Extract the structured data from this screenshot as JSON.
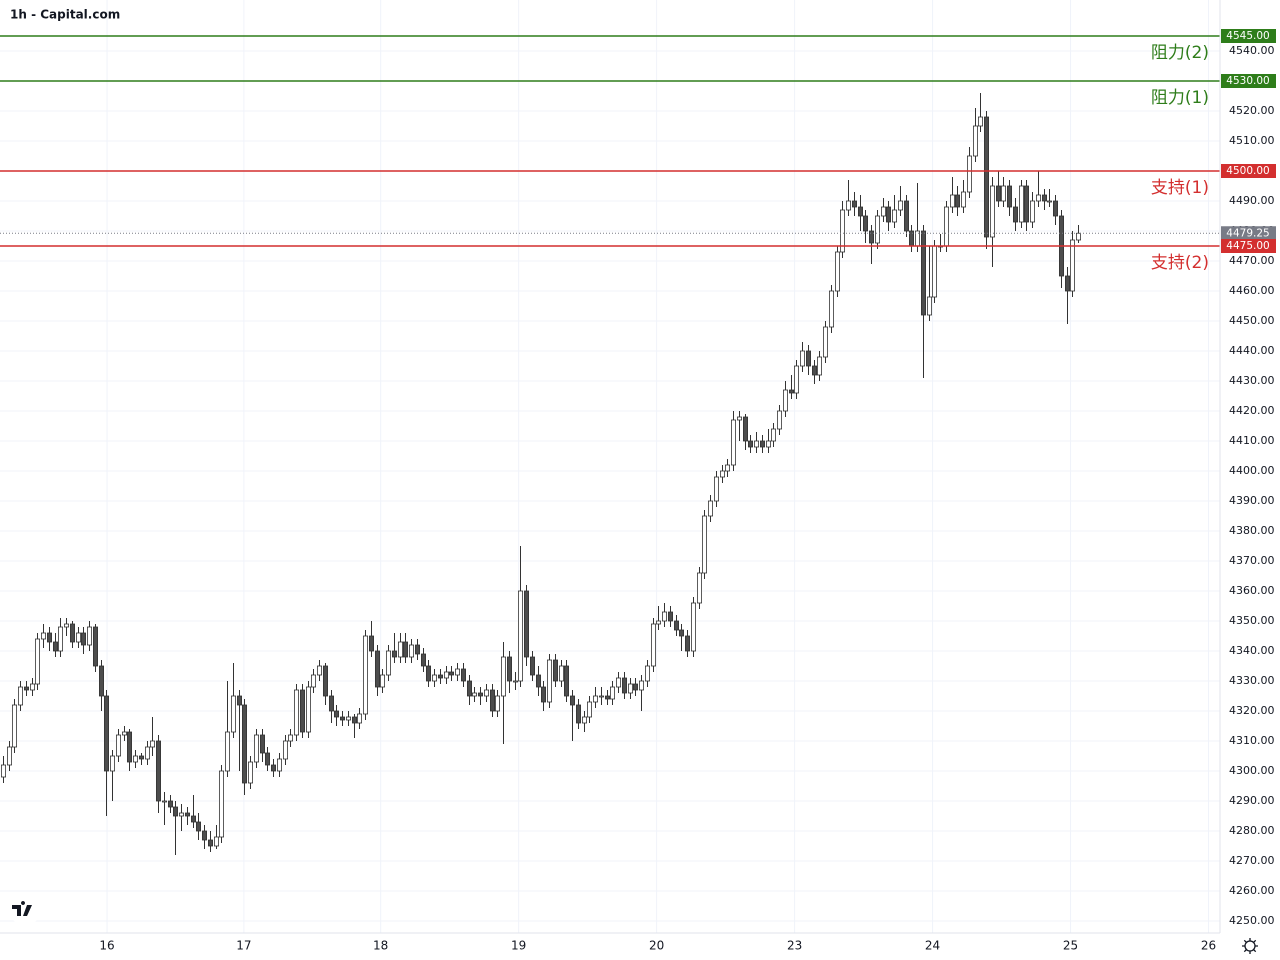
{
  "chart_data": {
    "type": "candlestick",
    "title": "1h - Capital.com",
    "candles": [
      [
        4298,
        4305,
        4296,
        4302
      ],
      [
        4302,
        4310,
        4300,
        4308
      ],
      [
        4308,
        4324,
        4306,
        4322
      ],
      [
        4322,
        4330,
        4320,
        4328
      ],
      [
        4328,
        4330,
        4325,
        4327
      ],
      [
        4327,
        4331,
        4325,
        4329
      ],
      [
        4329,
        4346,
        4327,
        4344
      ],
      [
        4344,
        4349,
        4341,
        4346
      ],
      [
        4346,
        4348,
        4340,
        4343
      ],
      [
        4343,
        4346,
        4338,
        4340
      ],
      [
        4340,
        4351,
        4338,
        4348
      ],
      [
        4348,
        4351,
        4345,
        4349
      ],
      [
        4349,
        4350,
        4341,
        4343
      ],
      [
        4343,
        4348,
        4341,
        4346
      ],
      [
        4346,
        4348,
        4339,
        4342
      ],
      [
        4342,
        4350,
        4340,
        4348
      ],
      [
        4348,
        4349,
        4333,
        4335
      ],
      [
        4335,
        4337,
        4320,
        4325
      ],
      [
        4325,
        4327,
        4285,
        4300
      ],
      [
        4300,
        4307,
        4290,
        4305
      ],
      [
        4305,
        4314,
        4303,
        4312
      ],
      [
        4312,
        4315,
        4310,
        4313
      ],
      [
        4313,
        4314,
        4300,
        4303
      ],
      [
        4303,
        4307,
        4301,
        4305
      ],
      [
        4305,
        4306,
        4302,
        4304
      ],
      [
        4304,
        4310,
        4302,
        4308
      ],
      [
        4308,
        4318,
        4305,
        4310
      ],
      [
        4310,
        4312,
        4286,
        4290
      ],
      [
        4290,
        4293,
        4282,
        4290
      ],
      [
        4290,
        4292,
        4286,
        4288
      ],
      [
        4288,
        4290,
        4272,
        4285
      ],
      [
        4285,
        4289,
        4280,
        4286
      ],
      [
        4286,
        4288,
        4282,
        4285
      ],
      [
        4285,
        4292,
        4281,
        4283
      ],
      [
        4283,
        4286,
        4277,
        4280
      ],
      [
        4280,
        4282,
        4274,
        4277
      ],
      [
        4277,
        4280,
        4273,
        4275
      ],
      [
        4275,
        4282,
        4274,
        4278
      ],
      [
        4278,
        4302,
        4276,
        4300
      ],
      [
        4300,
        4330,
        4298,
        4313
      ],
      [
        4313,
        4336,
        4311,
        4325
      ],
      [
        4325,
        4327,
        4300,
        4322
      ],
      [
        4322,
        4324,
        4292,
        4296
      ],
      [
        4296,
        4305,
        4294,
        4303
      ],
      [
        4303,
        4314,
        4301,
        4312
      ],
      [
        4312,
        4314,
        4303,
        4306
      ],
      [
        4306,
        4308,
        4300,
        4302
      ],
      [
        4302,
        4304,
        4298,
        4300
      ],
      [
        4300,
        4306,
        4298,
        4304
      ],
      [
        4304,
        4312,
        4302,
        4310
      ],
      [
        4310,
        4314,
        4308,
        4312
      ],
      [
        4312,
        4329,
        4310,
        4327
      ],
      [
        4327,
        4329,
        4311,
        4313
      ],
      [
        4313,
        4330,
        4311,
        4328
      ],
      [
        4328,
        4334,
        4326,
        4332
      ],
      [
        4332,
        4337,
        4330,
        4335
      ],
      [
        4335,
        4336,
        4322,
        4325
      ],
      [
        4325,
        4327,
        4316,
        4320
      ],
      [
        4320,
        4322,
        4315,
        4318
      ],
      [
        4318,
        4320,
        4315,
        4317
      ],
      [
        4317,
        4320,
        4315,
        4318
      ],
      [
        4318,
        4319,
        4311,
        4316
      ],
      [
        4316,
        4321,
        4314,
        4319
      ],
      [
        4319,
        4347,
        4317,
        4345
      ],
      [
        4345,
        4350,
        4338,
        4340
      ],
      [
        4340,
        4342,
        4325,
        4328
      ],
      [
        4328,
        4334,
        4326,
        4332
      ],
      [
        4332,
        4342,
        4330,
        4340
      ],
      [
        4340,
        4346,
        4336,
        4338
      ],
      [
        4338,
        4346,
        4336,
        4343
      ],
      [
        4343,
        4346,
        4336,
        4338
      ],
      [
        4338,
        4344,
        4336,
        4342
      ],
      [
        4342,
        4344,
        4337,
        4339
      ],
      [
        4339,
        4341,
        4333,
        4335
      ],
      [
        4335,
        4337,
        4328,
        4330
      ],
      [
        4330,
        4334,
        4328,
        4332
      ],
      [
        4332,
        4334,
        4329,
        4331
      ],
      [
        4331,
        4335,
        4329,
        4333
      ],
      [
        4333,
        4335,
        4330,
        4332
      ],
      [
        4332,
        4336,
        4330,
        4334
      ],
      [
        4334,
        4336,
        4328,
        4330
      ],
      [
        4330,
        4332,
        4322,
        4325
      ],
      [
        4325,
        4328,
        4323,
        4326
      ],
      [
        4326,
        4328,
        4322,
        4325
      ],
      [
        4325,
        4329,
        4323,
        4327
      ],
      [
        4327,
        4329,
        4318,
        4320
      ],
      [
        4320,
        4327,
        4318,
        4325
      ],
      [
        4325,
        4343,
        4309,
        4338
      ],
      [
        4338,
        4340,
        4326,
        4330
      ],
      [
        4330,
        4333,
        4327,
        4330
      ],
      [
        4330,
        4375,
        4328,
        4360
      ],
      [
        4360,
        4362,
        4335,
        4338
      ],
      [
        4338,
        4340,
        4330,
        4332
      ],
      [
        4332,
        4335,
        4325,
        4328
      ],
      [
        4328,
        4330,
        4320,
        4323
      ],
      [
        4323,
        4339,
        4321,
        4337
      ],
      [
        4337,
        4339,
        4328,
        4330
      ],
      [
        4330,
        4337,
        4328,
        4335
      ],
      [
        4335,
        4337,
        4323,
        4325
      ],
      [
        4325,
        4327,
        4310,
        4322
      ],
      [
        4322,
        4324,
        4314,
        4316
      ],
      [
        4316,
        4320,
        4313,
        4318
      ],
      [
        4318,
        4325,
        4316,
        4323
      ],
      [
        4323,
        4328,
        4321,
        4325
      ],
      [
        4325,
        4328,
        4322,
        4325
      ],
      [
        4325,
        4327,
        4322,
        4324
      ],
      [
        4324,
        4330,
        4322,
        4328
      ],
      [
        4328,
        4333,
        4326,
        4331
      ],
      [
        4331,
        4333,
        4324,
        4326
      ],
      [
        4326,
        4331,
        4324,
        4329
      ],
      [
        4329,
        4331,
        4325,
        4327
      ],
      [
        4327,
        4332,
        4320,
        4330
      ],
      [
        4330,
        4337,
        4328,
        4335
      ],
      [
        4335,
        4351,
        4333,
        4349
      ],
      [
        4349,
        4355,
        4347,
        4350
      ],
      [
        4350,
        4356,
        4348,
        4353
      ],
      [
        4353,
        4355,
        4348,
        4350
      ],
      [
        4350,
        4352,
        4345,
        4347
      ],
      [
        4347,
        4349,
        4340,
        4345
      ],
      [
        4345,
        4347,
        4338,
        4340
      ],
      [
        4340,
        4358,
        4338,
        4356
      ],
      [
        4356,
        4368,
        4354,
        4366
      ],
      [
        4366,
        4387,
        4364,
        4385
      ],
      [
        4385,
        4392,
        4383,
        4390
      ],
      [
        4390,
        4400,
        4388,
        4398
      ],
      [
        4398,
        4402,
        4396,
        4400
      ],
      [
        4400,
        4404,
        4398,
        4402
      ],
      [
        4402,
        4420,
        4400,
        4417
      ],
      [
        4417,
        4420,
        4410,
        4418
      ],
      [
        4418,
        4419,
        4407,
        4410
      ],
      [
        4410,
        4412,
        4406,
        4408
      ],
      [
        4408,
        4413,
        4406,
        4410
      ],
      [
        4410,
        4412,
        4406,
        4408
      ],
      [
        4408,
        4414,
        4406,
        4410
      ],
      [
        4410,
        4416,
        4408,
        4414
      ],
      [
        4414,
        4422,
        4412,
        4420
      ],
      [
        4420,
        4430,
        4418,
        4427
      ],
      [
        4427,
        4432,
        4424,
        4426
      ],
      [
        4426,
        4437,
        4424,
        4435
      ],
      [
        4435,
        4443,
        4433,
        4440
      ],
      [
        4440,
        4442,
        4432,
        4435
      ],
      [
        4435,
        4437,
        4429,
        4432
      ],
      [
        4432,
        4440,
        4430,
        4438
      ],
      [
        4438,
        4450,
        4436,
        4448
      ],
      [
        4448,
        4462,
        4446,
        4460
      ],
      [
        4460,
        4475,
        4458,
        4473
      ],
      [
        4473,
        4490,
        4471,
        4487
      ],
      [
        4487,
        4497,
        4485,
        4490
      ],
      [
        4490,
        4493,
        4485,
        4488
      ],
      [
        4488,
        4492,
        4480,
        4485
      ],
      [
        4485,
        4487,
        4476,
        4480
      ],
      [
        4480,
        4482,
        4469,
        4476
      ],
      [
        4476,
        4487,
        4474,
        4485
      ],
      [
        4485,
        4491,
        4483,
        4488
      ],
      [
        4488,
        4490,
        4480,
        4483
      ],
      [
        4483,
        4492,
        4481,
        4487
      ],
      [
        4487,
        4495,
        4485,
        4490
      ],
      [
        4490,
        4492,
        4478,
        4480
      ],
      [
        4480,
        4482,
        4473,
        4475
      ],
      [
        4475,
        4496,
        4473,
        4480
      ],
      [
        4480,
        4482,
        4431,
        4452
      ],
      [
        4452,
        4475,
        4450,
        4458
      ],
      [
        4458,
        4477,
        4456,
        4475
      ],
      [
        4475,
        4479,
        4473,
        4475
      ],
      [
        4475,
        4490,
        4473,
        4488
      ],
      [
        4488,
        4498,
        4486,
        4492
      ],
      [
        4492,
        4495,
        4485,
        4488
      ],
      [
        4488,
        4497,
        4486,
        4493
      ],
      [
        4493,
        4508,
        4491,
        4505
      ],
      [
        4505,
        4521,
        4503,
        4515
      ],
      [
        4515,
        4526,
        4513,
        4518
      ],
      [
        4518,
        4520,
        4474,
        4478
      ],
      [
        4478,
        4498,
        4468,
        4495
      ],
      [
        4495,
        4500,
        4488,
        4490
      ],
      [
        4490,
        4498,
        4488,
        4495
      ],
      [
        4495,
        4497,
        4485,
        4488
      ],
      [
        4488,
        4491,
        4480,
        4483
      ],
      [
        4483,
        4497,
        4481,
        4495
      ],
      [
        4495,
        4497,
        4480,
        4483
      ],
      [
        4483,
        4493,
        4481,
        4490
      ],
      [
        4490,
        4500,
        4488,
        4492
      ],
      [
        4492,
        4494,
        4487,
        4490
      ],
      [
        4490,
        4494,
        4488,
        4490
      ],
      [
        4490,
        4492,
        4482,
        4485
      ],
      [
        4485,
        4487,
        4461,
        4465
      ],
      [
        4465,
        4468,
        4449,
        4460
      ],
      [
        4460,
        4480,
        4458,
        4477
      ],
      [
        4477,
        4482,
        4476,
        4479.25
      ]
    ],
    "up_color": "#ffffff",
    "down_color": "#4d4d4d",
    "wick_color": "#333333",
    "xlim": [
      -0.52,
      211.7
    ],
    "xticks": [
      {
        "value": 18.1,
        "label": "16"
      },
      {
        "value": 41.9,
        "label": "17"
      },
      {
        "value": 65.7,
        "label": "18"
      },
      {
        "value": 89.7,
        "label": "19"
      },
      {
        "value": 113.7,
        "label": "20"
      },
      {
        "value": 137.7,
        "label": "23"
      },
      {
        "value": 161.7,
        "label": "24"
      },
      {
        "value": 185.7,
        "label": "25"
      },
      {
        "value": 209.7,
        "label": "26"
      }
    ],
    "ylim": [
      4246,
      4557
    ],
    "yticks": [
      {
        "value": 4250,
        "label": "4250.00"
      },
      {
        "value": 4260,
        "label": "4260.00"
      },
      {
        "value": 4270,
        "label": "4270.00"
      },
      {
        "value": 4280,
        "label": "4280.00"
      },
      {
        "value": 4290,
        "label": "4290.00"
      },
      {
        "value": 4300,
        "label": "4300.00"
      },
      {
        "value": 4310,
        "label": "4310.00"
      },
      {
        "value": 4320,
        "label": "4320.00"
      },
      {
        "value": 4330,
        "label": "4330.00"
      },
      {
        "value": 4340,
        "label": "4340.00"
      },
      {
        "value": 4350,
        "label": "4350.00"
      },
      {
        "value": 4360,
        "label": "4360.00"
      },
      {
        "value": 4370,
        "label": "4370.00"
      },
      {
        "value": 4380,
        "label": "4380.00"
      },
      {
        "value": 4390,
        "label": "4390.00"
      },
      {
        "value": 4400,
        "label": "4400.00"
      },
      {
        "value": 4410,
        "label": "4410.00"
      },
      {
        "value": 4420,
        "label": "4420.00"
      },
      {
        "value": 4430,
        "label": "4430.00"
      },
      {
        "value": 4440,
        "label": "4440.00"
      },
      {
        "value": 4450,
        "label": "4450.00"
      },
      {
        "value": 4460,
        "label": "4460.00"
      },
      {
        "value": 4470,
        "label": "4470.00"
      },
      {
        "value": 4480,
        "label": "4480.00"
      },
      {
        "value": 4490,
        "label": "4490.00"
      },
      {
        "value": 4500,
        "label": "4500.00"
      },
      {
        "value": 4510,
        "label": "4510.00"
      },
      {
        "value": 4520,
        "label": "4520.00"
      },
      {
        "value": 4530,
        "label": "4530.00"
      },
      {
        "value": 4540,
        "label": "4540.00"
      }
    ],
    "grid": true,
    "levels": [
      {
        "name": "阻力(2)",
        "value": 4545,
        "label": "4545.00",
        "color": "#2e7d1a"
      },
      {
        "name": "阻力(1)",
        "value": 4530,
        "label": "4530.00",
        "color": "#2e7d1a"
      },
      {
        "name": "支持(1)",
        "value": 4500,
        "label": "4500.00",
        "color": "#d32f2f"
      },
      {
        "name": "支持(2)",
        "value": 4475,
        "label": "4475.00",
        "color": "#d32f2f"
      }
    ],
    "last_price": {
      "value": 4479.25,
      "label": "4479.25",
      "color": "#787b86"
    }
  }
}
